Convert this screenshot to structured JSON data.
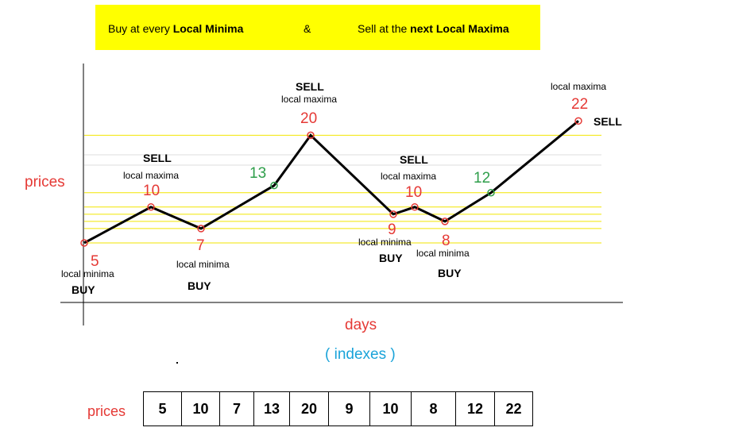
{
  "banner": {
    "part1_prefix": "Buy  at  every ",
    "part1_bold": "Local  Minima",
    "ampersand": "&",
    "part2_prefix": "Sell  at  the  ",
    "part2_next": "next",
    "part2_bold": "  Local Maxima"
  },
  "axes": {
    "y_label": "prices",
    "x_label": "days",
    "x_sublabel": "( indexes )"
  },
  "colors": {
    "extrema": "#e53935",
    "mid": "#2e9e4a",
    "line": "#000000",
    "gridline": "#f2e600",
    "banner": "#ffff00",
    "indexes": "#1aa3d9"
  },
  "chart_data": {
    "type": "line",
    "title": "Buy at every Local Minima & Sell at the next Local Maxima",
    "xlabel": "days ( indexes )",
    "ylabel": "prices",
    "x": [
      0,
      1,
      2,
      3,
      4,
      5,
      6,
      7,
      8,
      9
    ],
    "values": [
      5,
      10,
      7,
      13,
      20,
      9,
      10,
      8,
      12,
      22
    ],
    "points": [
      {
        "value": "5",
        "kind": "min",
        "desc": "local minima",
        "action": "BUY"
      },
      {
        "value": "10",
        "kind": "max",
        "desc": "local maxima",
        "action": "SELL"
      },
      {
        "value": "7",
        "kind": "min",
        "desc": "local minima",
        "action": "BUY"
      },
      {
        "value": "13",
        "kind": "mid",
        "desc": "",
        "action": ""
      },
      {
        "value": "20",
        "kind": "max",
        "desc": "local maxima",
        "action": "SELL"
      },
      {
        "value": "9",
        "kind": "min",
        "desc": "local minima",
        "action": "BUY"
      },
      {
        "value": "10",
        "kind": "max",
        "desc": "local maxima",
        "action": "SELL"
      },
      {
        "value": "8",
        "kind": "min",
        "desc": "local minima",
        "action": "BUY"
      },
      {
        "value": "12",
        "kind": "mid",
        "desc": "",
        "action": ""
      },
      {
        "value": "22",
        "kind": "max",
        "desc": "local maxima",
        "action": "SELL"
      }
    ],
    "gridlines_at": [
      5,
      7,
      8,
      9,
      10,
      12,
      20
    ]
  },
  "table": {
    "label": "prices",
    "values": [
      "5",
      "10",
      "7",
      "13",
      "20",
      "9",
      "10",
      "8",
      "12",
      "22"
    ]
  }
}
